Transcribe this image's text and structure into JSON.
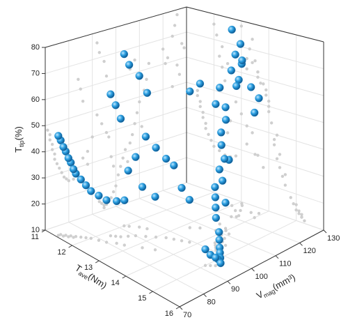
{
  "chart_data": {
    "type": "scatter3d",
    "xlabel": {
      "base": "T",
      "sub": "ave",
      "unit": "(Nm)"
    },
    "ylabel": {
      "base": "V",
      "sub": "mag",
      "unit": "(mm³)"
    },
    "zlabel": {
      "base": "T",
      "sub": "tip",
      "unit": "(%)"
    },
    "xlim": [
      11,
      16
    ],
    "xticks": [
      11,
      12,
      13,
      14,
      15,
      16
    ],
    "ylim": [
      70,
      130
    ],
    "yticks": [
      70,
      80,
      90,
      100,
      110,
      120,
      130
    ],
    "zlim": [
      10,
      80
    ],
    "zticks": [
      10,
      20,
      30,
      40,
      50,
      60,
      70,
      80
    ],
    "grid": true,
    "color": "#1e8fd0",
    "projection_color": "#cfcfcf",
    "x": [
      11.4,
      11.4,
      11.5,
      11.5,
      11.6,
      11.6,
      11.7,
      11.7,
      11.8,
      11.9,
      12.0,
      12.2,
      12.4,
      12.6,
      12.8,
      12.5,
      12.6,
      12.3,
      12.2,
      12.4,
      12.0,
      12.1,
      12.3,
      12.5,
      12.8,
      13.0,
      13.2,
      13.4,
      13.6,
      13.8,
      13.5,
      13.2,
      15.0,
      15.1,
      15.2,
      15.2,
      15.2,
      15.1,
      15.0,
      14.9,
      14.8,
      15.3,
      14.6,
      14.5,
      14.4,
      14.3,
      14.6,
      14.4,
      14.2,
      14.3,
      14.1,
      14.0,
      14.2,
      14.0,
      13.8,
      13.9,
      13.6,
      13.4,
      13.2,
      13.5,
      13.6,
      13.3,
      13.4,
      13.0,
      13.7,
      13.9,
      13.2,
      13.1,
      14.0,
      13.6
    ],
    "y": [
      71,
      72,
      72,
      73,
      73,
      74,
      74,
      75,
      76,
      77,
      78,
      79,
      80,
      82,
      83,
      88,
      90,
      85,
      84,
      86,
      92,
      93,
      95,
      96,
      92,
      94,
      96,
      97,
      98,
      99,
      88,
      86,
      92,
      93,
      94,
      95,
      96,
      97,
      98,
      99,
      100,
      95,
      101,
      102,
      103,
      104,
      105,
      106,
      107,
      108,
      109,
      110,
      111,
      112,
      110,
      113,
      114,
      108,
      106,
      120,
      122,
      124,
      125,
      126,
      126,
      127,
      128,
      129,
      124,
      121
    ],
    "z": [
      48,
      46,
      44,
      42,
      40,
      38,
      36,
      34,
      32,
      30,
      28,
      27,
      26,
      26,
      27,
      35,
      40,
      60,
      64,
      55,
      76,
      72,
      68,
      62,
      48,
      44,
      40,
      38,
      30,
      26,
      30,
      33,
      16,
      14,
      13,
      12,
      12,
      13,
      14,
      16,
      18,
      11,
      22,
      25,
      28,
      31,
      26,
      33,
      36,
      40,
      44,
      48,
      38,
      52,
      58,
      56,
      62,
      65,
      62,
      66,
      62,
      70,
      74,
      78,
      58,
      54,
      66,
      64,
      50,
      60
    ]
  }
}
